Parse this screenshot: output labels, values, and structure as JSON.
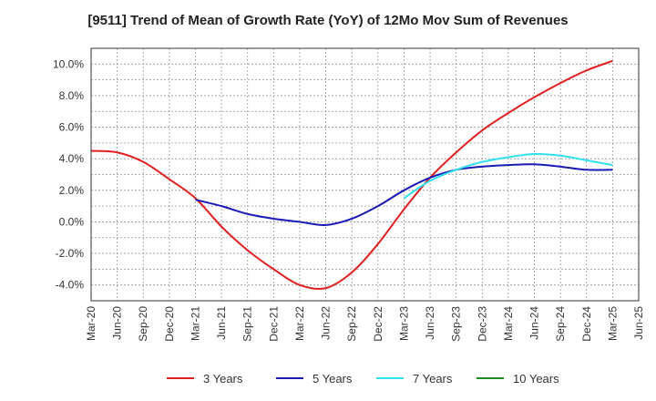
{
  "chart_data": {
    "type": "line",
    "title": "[9511]  Trend of Mean of Growth Rate (YoY) of 12Mo Mov Sum of Revenues",
    "xlabel": "",
    "ylabel": "",
    "x_tick_labels": [
      "Mar-20",
      "Jun-20",
      "Sep-20",
      "Dec-20",
      "Mar-21",
      "Jun-21",
      "Sep-21",
      "Dec-21",
      "Mar-22",
      "Jun-22",
      "Sep-22",
      "Dec-22",
      "Mar-23",
      "Jun-23",
      "Sep-23",
      "Dec-23",
      "Mar-24",
      "Jun-24",
      "Sep-24",
      "Dec-24",
      "Mar-25",
      "Jun-25"
    ],
    "y_ticks": [
      10,
      8,
      6,
      4,
      2,
      0,
      -2,
      -4
    ],
    "y_tick_labels": [
      "10.0%",
      "8.0%",
      "6.0%",
      "4.0%",
      "2.0%",
      "0.0%",
      "-2.0%",
      "-4.0%"
    ],
    "ylim": [
      -5,
      11
    ],
    "grid": true,
    "legend_position": "bottom",
    "series": [
      {
        "name": "3 Years",
        "color": "#e02020",
        "x": [
          "Mar-20",
          "Jun-20",
          "Sep-20",
          "Dec-20",
          "Mar-21",
          "Jun-21",
          "Sep-21",
          "Dec-21",
          "Mar-22",
          "Jun-22",
          "Sep-22",
          "Dec-22",
          "Mar-23",
          "Jun-23",
          "Sep-23",
          "Dec-23",
          "Mar-24",
          "Jun-24",
          "Sep-24",
          "Dec-24",
          "Mar-25"
        ],
        "values": [
          4.5,
          4.4,
          3.8,
          2.7,
          1.5,
          -0.3,
          -1.8,
          -3.0,
          -4.0,
          -4.2,
          -3.2,
          -1.4,
          0.8,
          2.8,
          4.4,
          5.8,
          6.9,
          7.9,
          8.8,
          9.6,
          10.2
        ]
      },
      {
        "name": "5 Years",
        "color": "#1a1ab4",
        "x": [
          "Mar-21",
          "Jun-21",
          "Sep-21",
          "Dec-21",
          "Mar-22",
          "Jun-22",
          "Sep-22",
          "Dec-22",
          "Mar-23",
          "Jun-23",
          "Sep-23",
          "Dec-23",
          "Mar-24",
          "Jun-24",
          "Sep-24",
          "Dec-24",
          "Mar-25"
        ],
        "values": [
          1.4,
          1.0,
          0.5,
          0.2,
          0.0,
          -0.2,
          0.2,
          1.0,
          2.0,
          2.8,
          3.3,
          3.5,
          3.6,
          3.65,
          3.5,
          3.3,
          3.3
        ]
      },
      {
        "name": "7 Years",
        "color": "#33e0f0",
        "x": [
          "Mar-23",
          "Jun-23",
          "Sep-23",
          "Dec-23",
          "Mar-24",
          "Jun-24",
          "Sep-24",
          "Dec-24",
          "Mar-25"
        ],
        "values": [
          1.5,
          2.6,
          3.3,
          3.8,
          4.1,
          4.3,
          4.2,
          3.9,
          3.6
        ]
      },
      {
        "name": "10 Years",
        "color": "#1e8c1e",
        "x": [],
        "values": []
      }
    ]
  }
}
